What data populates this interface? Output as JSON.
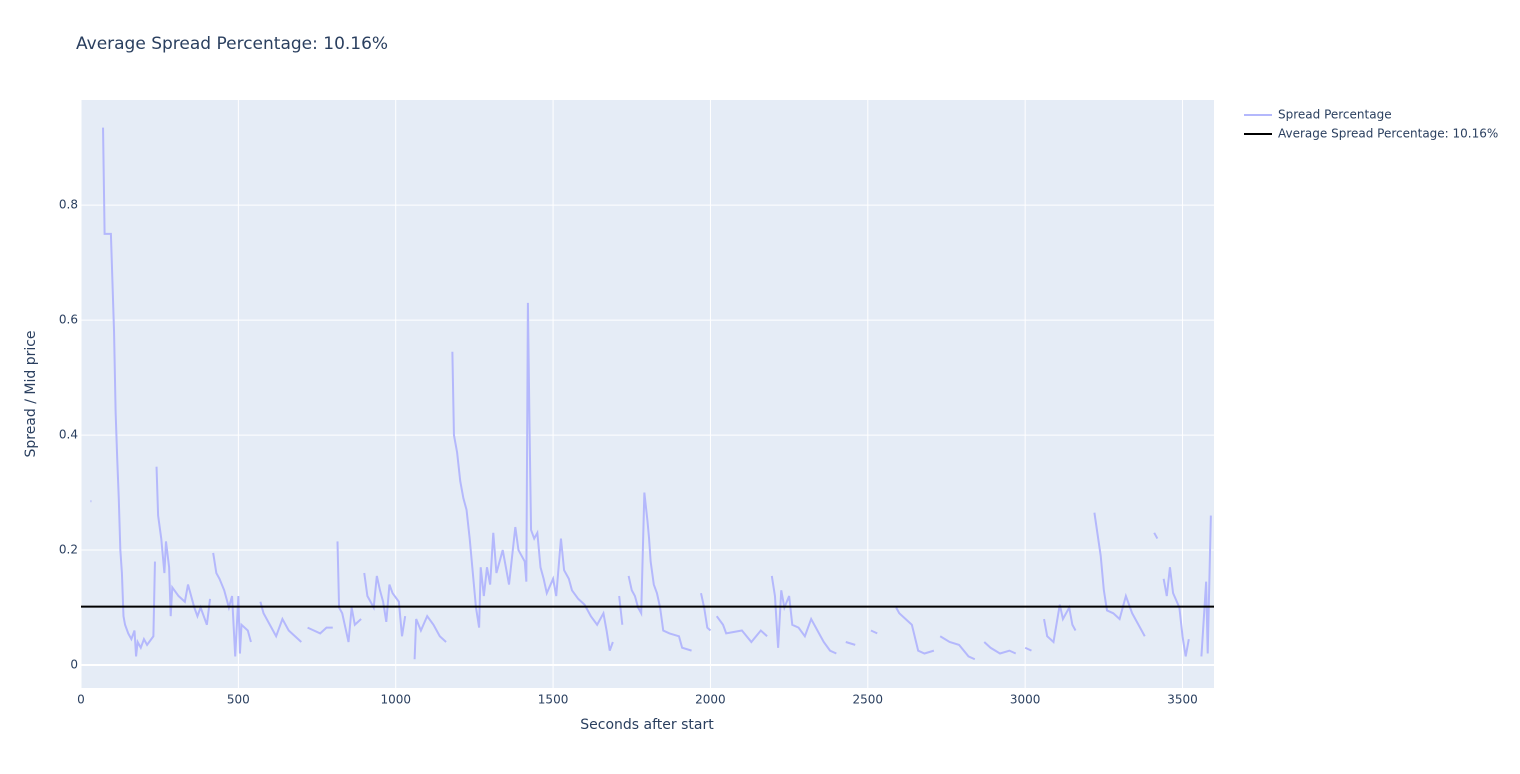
{
  "chart_data": {
    "type": "line",
    "title": "Average Spread Percentage: 10.16%",
    "x_label": "Seconds after start",
    "y_label": "Spread / Mid price",
    "xlim": [
      0,
      3600
    ],
    "xticks": [
      0,
      500,
      1000,
      1500,
      2000,
      2500,
      3000,
      3500
    ],
    "ylim": [
      -0.04,
      0.983
    ],
    "yticks": [
      0,
      0.2,
      0.4,
      0.6,
      0.8
    ],
    "grid": true,
    "legend": "top-right",
    "series": [
      {
        "name": "Spread Percentage",
        "color": "#b4b8fc",
        "x": [
          30,
          35,
          70,
          75,
          95,
          100,
          105,
          110,
          115,
          120,
          125,
          130,
          135,
          140,
          150,
          160,
          170,
          175,
          180,
          190,
          200,
          210,
          230,
          235,
          237,
          240,
          245,
          255,
          265,
          270,
          280,
          285,
          290,
          310,
          330,
          340,
          360,
          370,
          380,
          400,
          410,
          415,
          420,
          430,
          440,
          455,
          470,
          480,
          490,
          500,
          505,
          510,
          530,
          540,
          545,
          570,
          580,
          600,
          620,
          640,
          660,
          680,
          700,
          705,
          720,
          760,
          780,
          800,
          805,
          815,
          820,
          830,
          850,
          860,
          870,
          890,
          895,
          900,
          910,
          930,
          940,
          950,
          960,
          970,
          980,
          990,
          1010,
          1020,
          1030,
          1035,
          1060,
          1065,
          1080,
          1100,
          1120,
          1140,
          1160,
          1165,
          1180,
          1185,
          1195,
          1205,
          1215,
          1225,
          1235,
          1245,
          1255,
          1265,
          1270,
          1280,
          1290,
          1300,
          1310,
          1320,
          1340,
          1360,
          1380,
          1390,
          1410,
          1415,
          1420,
          1425,
          1430,
          1440,
          1450,
          1460,
          1470,
          1480,
          1500,
          1510,
          1525,
          1535,
          1550,
          1560,
          1580,
          1600,
          1620,
          1640,
          1660,
          1670,
          1680,
          1690,
          1695,
          1710,
          1720,
          1725,
          1740,
          1750,
          1760,
          1770,
          1780,
          1790,
          1800,
          1805,
          1810,
          1820,
          1830,
          1840,
          1850,
          1870,
          1900,
          1910,
          1940,
          1945,
          1970,
          1980,
          1990,
          2000,
          2005,
          2020,
          2040,
          2050,
          2100,
          2130,
          2160,
          2180,
          2185,
          2195,
          2205,
          2215,
          2225,
          2235,
          2250,
          2260,
          2280,
          2300,
          2320,
          2340,
          2360,
          2380,
          2400,
          2405,
          2430,
          2460,
          2465,
          2510,
          2530,
          2535,
          2590,
          2600,
          2620,
          2640,
          2660,
          2680,
          2710,
          2715,
          2730,
          2760,
          2790,
          2820,
          2840,
          2845,
          2870,
          2890,
          2920,
          2950,
          2970,
          2975,
          3000,
          3020,
          3025,
          3060,
          3070,
          3090,
          3110,
          3120,
          3140,
          3150,
          3160,
          3165,
          3220,
          3240,
          3250,
          3260,
          3280,
          3300,
          3320,
          3340,
          3360,
          3380,
          3385,
          3410,
          3420,
          3425,
          3440,
          3450,
          3460,
          3470,
          3490,
          3500,
          3510,
          3520,
          3525,
          3560,
          3575,
          3580,
          3590
        ],
        "values": [
          0.285,
          null,
          0.935,
          0.75,
          0.75,
          0.665,
          0.58,
          0.44,
          0.36,
          0.29,
          0.2,
          0.16,
          0.085,
          0.07,
          0.055,
          0.045,
          0.06,
          0.015,
          0.04,
          0.03,
          0.045,
          0.035,
          0.05,
          0.18,
          null,
          0.345,
          0.26,
          0.22,
          0.16,
          0.215,
          0.17,
          0.085,
          0.135,
          0.12,
          0.11,
          0.14,
          0.1,
          0.085,
          0.1,
          0.07,
          0.115,
          null,
          0.195,
          0.16,
          0.15,
          0.13,
          0.1,
          0.12,
          0.015,
          0.12,
          0.02,
          0.07,
          0.06,
          0.04,
          null,
          0.11,
          0.09,
          0.07,
          0.05,
          0.08,
          0.06,
          0.05,
          0.04,
          null,
          0.065,
          0.055,
          0.065,
          0.065,
          null,
          0.215,
          0.1,
          0.09,
          0.04,
          0.1,
          0.07,
          0.08,
          null,
          0.16,
          0.12,
          0.1,
          0.155,
          0.13,
          0.11,
          0.075,
          0.14,
          0.125,
          0.11,
          0.05,
          0.085,
          null,
          0.01,
          0.08,
          0.06,
          0.085,
          0.07,
          0.05,
          0.04,
          null,
          0.545,
          0.4,
          0.37,
          0.32,
          0.29,
          0.27,
          0.22,
          0.16,
          0.1,
          0.065,
          0.17,
          0.12,
          0.17,
          0.14,
          0.23,
          0.16,
          0.2,
          0.14,
          0.24,
          0.2,
          0.18,
          0.145,
          0.63,
          0.42,
          0.235,
          0.22,
          0.23,
          0.17,
          0.15,
          0.125,
          0.15,
          0.12,
          0.22,
          0.165,
          0.15,
          0.13,
          0.115,
          0.105,
          0.085,
          0.07,
          0.09,
          0.06,
          0.025,
          0.04,
          null,
          0.12,
          0.07,
          null,
          0.155,
          0.13,
          0.12,
          0.1,
          0.09,
          0.3,
          0.25,
          0.22,
          0.18,
          0.14,
          0.125,
          0.1,
          0.06,
          0.055,
          0.05,
          0.03,
          0.025,
          null,
          0.125,
          0.1,
          0.065,
          0.06,
          null,
          0.085,
          0.07,
          0.055,
          0.06,
          0.04,
          0.06,
          0.05,
          null,
          0.155,
          0.12,
          0.03,
          0.13,
          0.1,
          0.12,
          0.07,
          0.065,
          0.05,
          0.08,
          0.06,
          0.04,
          0.025,
          0.02,
          null,
          0.04,
          0.035,
          null,
          0.06,
          0.055,
          null,
          0.1,
          0.09,
          0.08,
          0.07,
          0.025,
          0.02,
          0.025,
          null,
          0.05,
          0.04,
          0.035,
          0.015,
          0.01,
          null,
          0.04,
          0.03,
          0.02,
          0.025,
          0.02,
          null,
          0.03,
          0.025,
          null,
          0.08,
          0.05,
          0.04,
          0.105,
          0.08,
          0.1,
          0.07,
          0.06,
          null,
          0.265,
          0.19,
          0.13,
          0.095,
          0.09,
          0.08,
          0.12,
          0.09,
          0.07,
          0.05,
          null,
          0.23,
          0.22,
          null,
          0.15,
          0.12,
          0.17,
          0.125,
          0.1,
          0.05,
          0.015,
          0.045,
          null,
          0.015,
          0.145,
          0.02,
          0.26
        ]
      },
      {
        "name": "Average Spread Percentage: 10.16%",
        "color": "#000000",
        "x": [
          0,
          3600
        ],
        "values": [
          0.1016,
          0.1016
        ]
      }
    ]
  }
}
